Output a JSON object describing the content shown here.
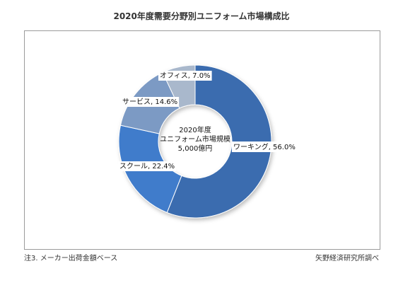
{
  "chart_data": {
    "type": "pie",
    "title": "2020年度需要分野別ユニフォーム市場構成比",
    "center_label": [
      "2020年度",
      "ユニフォーム市場規模",
      "5,000億円"
    ],
    "categories": [
      "ワーキング",
      "スクール",
      "サービス",
      "オフィス"
    ],
    "values": [
      56.0,
      22.4,
      14.6,
      7.0
    ],
    "labels": [
      "ワーキング, 56.0%",
      "スクール, 22.4%",
      "サービス, 14.6%",
      "オフィス, 7.0%"
    ],
    "colors": [
      "#3A6CAF",
      "#3F7BCB",
      "#7C9AC4",
      "#A9B8CC"
    ]
  },
  "footnote_left": "注3. メーカー出荷金額ベース",
  "footnote_right": "矢野経済研究所調べ"
}
